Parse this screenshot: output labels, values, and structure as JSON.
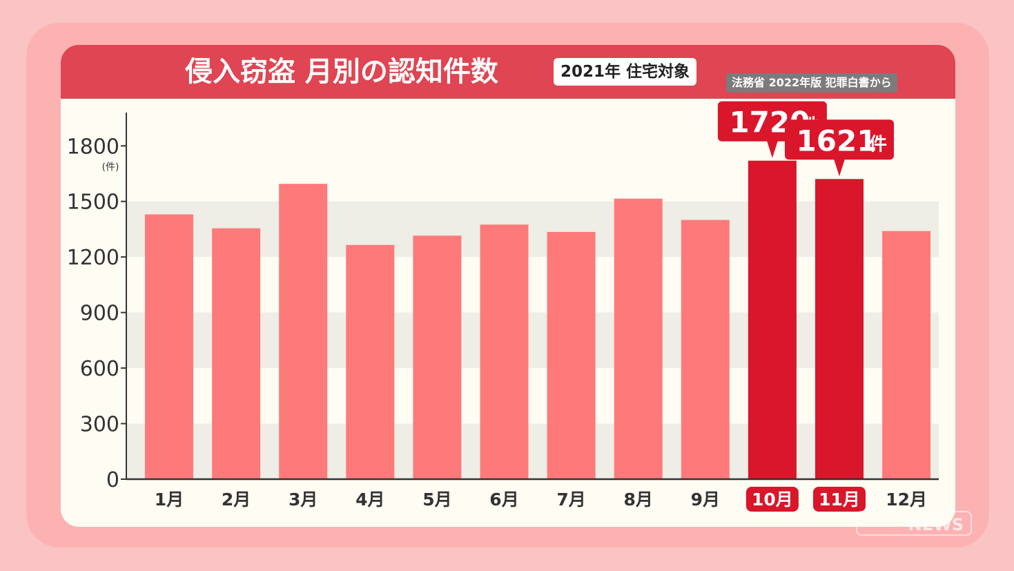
{
  "header": {
    "title": "侵入窃盗 月別の認知件数",
    "subtitle": "2021年 住宅対象",
    "source": "法務省 2022年版 犯罪白書から"
  },
  "watermark": "NEWS",
  "colors": {
    "bar_normal": "#fe7a7a",
    "bar_highlight": "#d9162a",
    "title_bar": "#df4552",
    "plot_bg": "#fffcf4",
    "band_bg": "#eeede6"
  },
  "chart_data": {
    "type": "bar",
    "title": "侵入窃盗 月別の認知件数",
    "ylabel": "(件)",
    "ylim": [
      0,
      1980
    ],
    "yticks": [
      0,
      300,
      600,
      900,
      1200,
      1500,
      1800
    ],
    "categories": [
      "1月",
      "2月",
      "3月",
      "4月",
      "5月",
      "6月",
      "7月",
      "8月",
      "9月",
      "10月",
      "11月",
      "12月"
    ],
    "values": [
      1430,
      1355,
      1595,
      1265,
      1315,
      1375,
      1335,
      1515,
      1400,
      1720,
      1621,
      1340
    ],
    "highlight": [
      false,
      false,
      false,
      false,
      false,
      false,
      false,
      false,
      false,
      true,
      true,
      false
    ],
    "annotations": [
      {
        "category": "10月",
        "value": "1720",
        "unit": "件"
      },
      {
        "category": "11月",
        "value": "1621",
        "unit": "件"
      }
    ]
  }
}
